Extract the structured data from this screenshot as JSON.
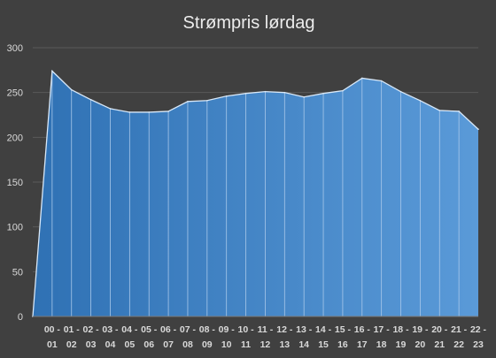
{
  "chart_data": {
    "type": "area",
    "title": "Strømpris lørdag",
    "xlabel": "",
    "ylabel": "",
    "ylim": [
      0,
      300
    ],
    "yticks": [
      0,
      50,
      100,
      150,
      200,
      250,
      300
    ],
    "grid": true,
    "categories": [
      [
        "",
        ""
      ],
      [
        "00 -",
        "01"
      ],
      [
        "01 -",
        "02"
      ],
      [
        "02 -",
        "03"
      ],
      [
        "03 -",
        "04"
      ],
      [
        "04 -",
        "05"
      ],
      [
        "05 -",
        "06"
      ],
      [
        "06 -",
        "07"
      ],
      [
        "07 -",
        "08"
      ],
      [
        "08 -",
        "09"
      ],
      [
        "09 -",
        "10"
      ],
      [
        "10 -",
        "11"
      ],
      [
        "11 -",
        "12"
      ],
      [
        "12 -",
        "13"
      ],
      [
        "13 -",
        "14"
      ],
      [
        "14 -",
        "15"
      ],
      [
        "15 -",
        "16"
      ],
      [
        "16 -",
        "17"
      ],
      [
        "17 -",
        "18"
      ],
      [
        "18 -",
        "19"
      ],
      [
        "19 -",
        "20"
      ],
      [
        "20 -",
        "21"
      ],
      [
        "21 -",
        "22"
      ],
      [
        "22 -",
        "23"
      ]
    ],
    "values": [
      0,
      274,
      253,
      242,
      232,
      228,
      228,
      229,
      240,
      241,
      246,
      249,
      251,
      250,
      245,
      249,
      252,
      266,
      263,
      251,
      241,
      230,
      229,
      209
    ],
    "colors": {
      "fill_start": "#2f71b4",
      "fill_end": "#5a9ad8",
      "line": "#d8e8f8",
      "background": "#404040"
    }
  }
}
